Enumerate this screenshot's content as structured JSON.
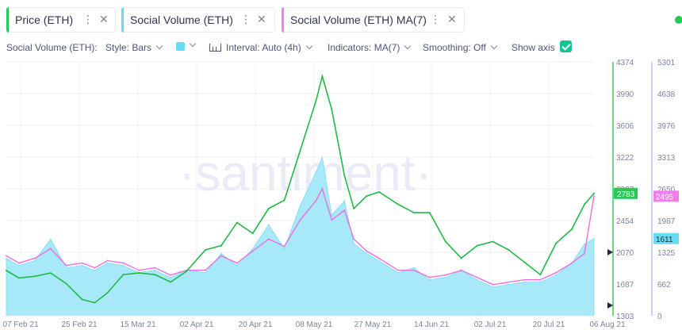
{
  "tabs": [
    {
      "label": "Price (ETH)",
      "color": "#26c953"
    },
    {
      "label": "Social Volume (ETH)",
      "color": "#68dbf4"
    },
    {
      "label": "Social Volume (ETH) MA(7)",
      "color": "#f47be9"
    }
  ],
  "tab_menu_glyph": "⋮",
  "tab_close_glyph": "✕",
  "settings": {
    "metric_label": "Social Volume (ETH):",
    "style": "Style: Bars",
    "interval": "Interval: Auto (4h)",
    "indicators": "Indicators: MA(7)",
    "smoothing": "Smoothing: Off",
    "show_axis": "Show axis",
    "show_axis_checked": true,
    "swatch_color": "#68dbf4"
  },
  "watermark": "·santiment·",
  "chart_data": {
    "type": "line",
    "x_ticks": [
      "07 Feb 21",
      "25 Feb 21",
      "15 Mar 21",
      "02 Apr 21",
      "20 Apr 21",
      "08 May 21",
      "27 May 21",
      "14 Jun 21",
      "02 Jul 21",
      "20 Jul 21",
      "06 Aug 21"
    ],
    "x_range": [
      "2021-02-01",
      "2021-08-06"
    ],
    "price_axis": {
      "ticks": [
        1303,
        1687,
        2070,
        2454,
        2837,
        3222,
        3606,
        3990,
        4374
      ],
      "range": [
        1303,
        4374
      ],
      "last_label": "2783",
      "color": "#26c953"
    },
    "social_axis": {
      "ticks": [
        0,
        662,
        1325,
        1987,
        2650,
        3313,
        3976,
        4638,
        5301
      ],
      "range": [
        0,
        5301
      ],
      "last_ma_label": "2495",
      "last_volume_label": "1611",
      "ma_color": "#f47be9",
      "volume_color": "#68dbf4"
    },
    "series": [
      {
        "name": "Price (ETH)",
        "x": [
          "2021-02-01",
          "2021-02-05",
          "2021-02-10",
          "2021-02-15",
          "2021-02-20",
          "2021-02-25",
          "2021-03-01",
          "2021-03-05",
          "2021-03-10",
          "2021-03-15",
          "2021-03-20",
          "2021-03-25",
          "2021-03-30",
          "2021-04-05",
          "2021-04-10",
          "2021-04-15",
          "2021-04-20",
          "2021-04-25",
          "2021-04-30",
          "2021-05-05",
          "2021-05-10",
          "2021-05-12",
          "2021-05-15",
          "2021-05-19",
          "2021-05-22",
          "2021-05-26",
          "2021-05-30",
          "2021-06-05",
          "2021-06-10",
          "2021-06-15",
          "2021-06-20",
          "2021-06-25",
          "2021-06-30",
          "2021-07-05",
          "2021-07-10",
          "2021-07-15",
          "2021-07-20",
          "2021-07-25",
          "2021-07-30",
          "2021-08-03",
          "2021-08-06"
        ],
        "values": [
          1850,
          1760,
          1780,
          1820,
          1690,
          1500,
          1460,
          1580,
          1800,
          1820,
          1800,
          1710,
          1840,
          2100,
          2150,
          2430,
          2300,
          2600,
          2700,
          3300,
          3900,
          4200,
          3800,
          3000,
          2600,
          2750,
          2800,
          2650,
          2550,
          2550,
          2200,
          2000,
          2150,
          2200,
          2100,
          1950,
          1800,
          2180,
          2350,
          2650,
          2783
        ]
      },
      {
        "name": "Social Volume (ETH) MA(7)",
        "x": [
          "2021-02-01",
          "2021-02-05",
          "2021-02-10",
          "2021-02-15",
          "2021-02-20",
          "2021-02-25",
          "2021-03-01",
          "2021-03-05",
          "2021-03-10",
          "2021-03-15",
          "2021-03-20",
          "2021-03-25",
          "2021-03-30",
          "2021-04-05",
          "2021-04-10",
          "2021-04-15",
          "2021-04-20",
          "2021-04-25",
          "2021-04-30",
          "2021-05-05",
          "2021-05-10",
          "2021-05-12",
          "2021-05-15",
          "2021-05-19",
          "2021-05-22",
          "2021-05-26",
          "2021-05-30",
          "2021-06-05",
          "2021-06-10",
          "2021-06-15",
          "2021-06-20",
          "2021-06-25",
          "2021-06-30",
          "2021-07-05",
          "2021-07-10",
          "2021-07-15",
          "2021-07-20",
          "2021-07-25",
          "2021-07-30",
          "2021-08-03",
          "2021-08-06"
        ],
        "values": [
          1250,
          1100,
          1200,
          1400,
          1050,
          1100,
          1000,
          1150,
          1100,
          950,
          1000,
          850,
          950,
          950,
          1250,
          1100,
          1350,
          1600,
          1450,
          2000,
          2400,
          2650,
          2000,
          2200,
          1600,
          1350,
          1200,
          950,
          950,
          800,
          850,
          950,
          800,
          650,
          700,
          750,
          750,
          900,
          1100,
          1300,
          2495
        ]
      },
      {
        "name": "Social Volume (ETH)",
        "x": [
          "2021-02-01",
          "2021-02-05",
          "2021-02-10",
          "2021-02-15",
          "2021-02-20",
          "2021-02-25",
          "2021-03-01",
          "2021-03-05",
          "2021-03-10",
          "2021-03-15",
          "2021-03-20",
          "2021-03-25",
          "2021-03-30",
          "2021-04-05",
          "2021-04-10",
          "2021-04-15",
          "2021-04-20",
          "2021-04-25",
          "2021-04-30",
          "2021-05-05",
          "2021-05-10",
          "2021-05-12",
          "2021-05-15",
          "2021-05-19",
          "2021-05-22",
          "2021-05-26",
          "2021-05-30",
          "2021-06-05",
          "2021-06-10",
          "2021-06-15",
          "2021-06-20",
          "2021-06-25",
          "2021-06-30",
          "2021-07-05",
          "2021-07-10",
          "2021-07-15",
          "2021-07-20",
          "2021-07-25",
          "2021-07-30",
          "2021-08-03",
          "2021-08-06"
        ],
        "values": [
          1200,
          1050,
          1150,
          1600,
          1000,
          1050,
          950,
          1100,
          1050,
          900,
          950,
          800,
          950,
          900,
          1300,
          1050,
          1400,
          1900,
          1400,
          2300,
          3000,
          3300,
          2100,
          2400,
          1500,
          1300,
          1150,
          900,
          1000,
          750,
          800,
          950,
          750,
          600,
          650,
          700,
          700,
          850,
          1100,
          1500,
          1611
        ]
      }
    ]
  }
}
